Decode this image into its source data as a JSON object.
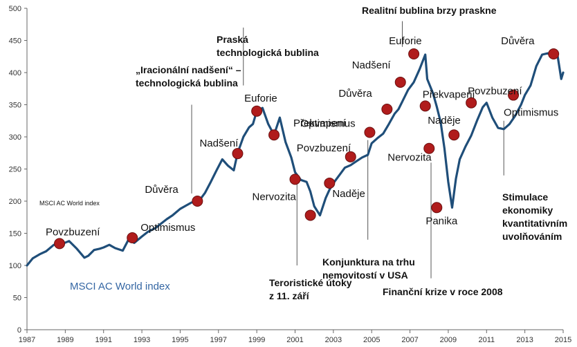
{
  "chart_data": {
    "type": "line",
    "xlim": [
      1987,
      2015
    ],
    "ylim": [
      0,
      500
    ],
    "y_ticks": [
      0,
      50,
      100,
      150,
      200,
      250,
      300,
      350,
      400,
      450,
      500
    ],
    "x_ticks": [
      "1987",
      "1989",
      "1991",
      "1993",
      "1995",
      "1997",
      "1999",
      "2001",
      "2003",
      "2005",
      "2007",
      "2009",
      "2011",
      "2013",
      "2015"
    ],
    "grid": false,
    "line_color": "#1f4e79",
    "marker_color": "#b01c1c",
    "series": [
      {
        "name": "MSCI AC World index",
        "x": [
          1987.0,
          1987.3,
          1987.7,
          1988.0,
          1988.4,
          1988.8,
          1989.2,
          1989.6,
          1990.0,
          1990.2,
          1990.5,
          1990.8,
          1991.0,
          1991.3,
          1991.6,
          1992.0,
          1992.3,
          1992.6,
          1993.0,
          1993.3,
          1993.7,
          1994.0,
          1994.3,
          1994.6,
          1995.0,
          1995.3,
          1995.6,
          1996.0,
          1996.3,
          1996.6,
          1996.9,
          1997.2,
          1997.5,
          1997.8,
          1998.0,
          1998.3,
          1998.6,
          1998.8,
          1999.0,
          1999.3,
          1999.6,
          1999.9,
          2000.2,
          2000.5,
          2000.8,
          2001.0,
          2001.3,
          2001.6,
          2001.8,
          2002.0,
          2002.3,
          2002.6,
          2002.8,
          2003.0,
          2003.3,
          2003.6,
          2003.9,
          2004.2,
          2004.5,
          2004.8,
          2005.0,
          2005.3,
          2005.6,
          2005.9,
          2006.2,
          2006.4,
          2006.6,
          2006.9,
          2007.2,
          2007.5,
          2007.8,
          2007.9,
          2008.2,
          2008.4,
          2008.6,
          2008.8,
          2009.0,
          2009.2,
          2009.4,
          2009.6,
          2009.9,
          2010.2,
          2010.5,
          2010.8,
          2011.0,
          2011.3,
          2011.6,
          2011.9,
          2012.2,
          2012.5,
          2012.8,
          2013.0,
          2013.3,
          2013.6,
          2013.9,
          2014.2,
          2014.5,
          2014.7,
          2014.9,
          2015.0
        ],
        "values": [
          100,
          111,
          118,
          122,
          132,
          133,
          138,
          126,
          112,
          115,
          124,
          126,
          128,
          132,
          127,
          123,
          140,
          135,
          145,
          152,
          158,
          165,
          172,
          178,
          188,
          193,
          198,
          201,
          213,
          230,
          248,
          265,
          255,
          248,
          275,
          300,
          315,
          320,
          340,
          345,
          320,
          303,
          330,
          292,
          268,
          245,
          233,
          230,
          215,
          192,
          178,
          205,
          218,
          228,
          240,
          252,
          256,
          262,
          268,
          272,
          290,
          298,
          305,
          320,
          336,
          343,
          355,
          373,
          385,
          405,
          428,
          390,
          368,
          347,
          323,
          282,
          230,
          190,
          235,
          265,
          285,
          302,
          325,
          346,
          353,
          330,
          314,
          312,
          320,
          333,
          350,
          365,
          380,
          410,
          428,
          430,
          425,
          428,
          390,
          400
        ]
      }
    ],
    "markers": [
      {
        "x": 1988.7,
        "y": 134,
        "label": "Povzbuzení"
      },
      {
        "x": 1992.5,
        "y": 143,
        "label": "Optimismus"
      },
      {
        "x": 1995.9,
        "y": 200,
        "label": "Důvěra"
      },
      {
        "x": 1998.0,
        "y": 274,
        "label": "Nadšení"
      },
      {
        "x": 1999.0,
        "y": 340,
        "label": "Euforie"
      },
      {
        "x": 1999.9,
        "y": 303,
        "label": "Překvapení"
      },
      {
        "x": 2001.0,
        "y": 234,
        "label": "Nervozita"
      },
      {
        "x": 2001.8,
        "y": 178,
        "label": ""
      },
      {
        "x": 2002.8,
        "y": 228,
        "label": "Naděje"
      },
      {
        "x": 2003.9,
        "y": 269,
        "label": "Povzbuzení"
      },
      {
        "x": 2004.9,
        "y": 307,
        "label": "Optimismus"
      },
      {
        "x": 2005.8,
        "y": 343,
        "label": "Důvěra"
      },
      {
        "x": 2006.5,
        "y": 385,
        "label": "Nadšení"
      },
      {
        "x": 2007.2,
        "y": 429,
        "label": "Euforie"
      },
      {
        "x": 2007.8,
        "y": 348,
        "label": "Překvapení"
      },
      {
        "x": 2008.0,
        "y": 282,
        "label": "Nervozita"
      },
      {
        "x": 2008.4,
        "y": 190,
        "label": "Panika"
      },
      {
        "x": 2009.3,
        "y": 303,
        "label": "Naděje"
      },
      {
        "x": 2010.2,
        "y": 353,
        "label": "Povzbuzení"
      },
      {
        "x": 2012.4,
        "y": 365,
        "label": "Optimismus"
      },
      {
        "x": 2014.5,
        "y": 429,
        "label": "Důvěra"
      }
    ],
    "annotations": [
      {
        "x": 1995.6,
        "y_from": 212,
        "y_to": 350,
        "lines": [
          "„Iracionální nadšení“ –",
          "technologická bublina"
        ]
      },
      {
        "x": 1998.3,
        "y_from": 380,
        "y_to": 470,
        "lines": [
          "Praská",
          "technologická bublina"
        ]
      },
      {
        "x": 2001.1,
        "y_from": 100,
        "y_to": 230,
        "lines": [
          "Teroristické útoky",
          "z 11. září"
        ]
      },
      {
        "x": 2004.8,
        "y_from": 140,
        "y_to": 295,
        "lines": [
          "Konjunktura na trhu",
          "nemovitostí v USA"
        ]
      },
      {
        "x": 2006.6,
        "y_from": 440,
        "y_to": 480,
        "lines": [
          "Realitní bublina brzy praskne"
        ]
      },
      {
        "x": 2008.1,
        "y_from": 80,
        "y_to": 260,
        "lines": [
          "Finanční krize v roce 2008"
        ]
      },
      {
        "x": 2011.9,
        "y_from": 240,
        "y_to": 325,
        "lines": [
          "Stimulace",
          "ekonomiky",
          "kvantitativním",
          "uvolňováním"
        ]
      }
    ],
    "legend_label": "MSCI AC World index",
    "small_label": "MSCI AC World index"
  }
}
